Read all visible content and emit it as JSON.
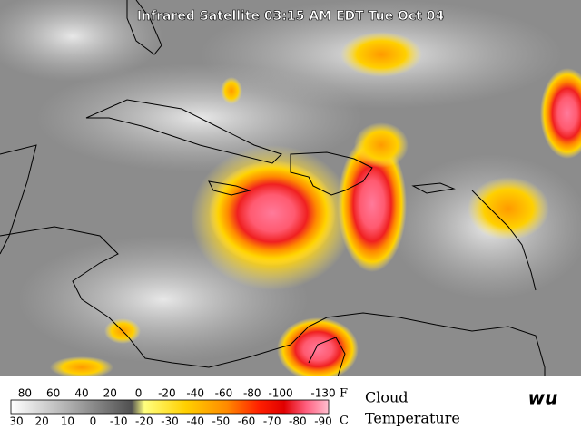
{
  "title": "Infrared Satellite 03:15 AM EDT Tue Oct 04",
  "legend": {
    "fahrenheit_ticks": [
      80,
      60,
      40,
      20,
      0,
      -20,
      -40,
      -60,
      -80,
      -100,
      -130
    ],
    "fahrenheit_unit": "F",
    "celsius_ticks": [
      30,
      20,
      10,
      0,
      -10,
      -20,
      -30,
      -40,
      -50,
      -60,
      -70,
      -80,
      -90
    ],
    "celsius_unit": "C",
    "label_line1": "Cloud",
    "label_line2": "Temperature"
  },
  "logo": "wu"
}
